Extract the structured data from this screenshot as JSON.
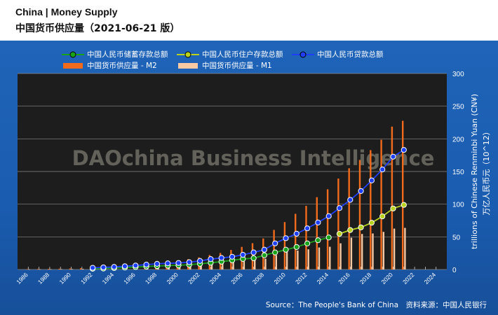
{
  "header": {
    "title_line1": "China  |  Money Supply",
    "title_line2": "中国货币供应量（2021-06-21 版）"
  },
  "watermark": "DAOchina Business Intelligence",
  "source": "Source：The People's Bank of China　资料来源：中国人民银行",
  "colors": {
    "plot_bg": "#1d1d1d",
    "panel": "#1a5cb0",
    "grid": "#8a8a8a",
    "savings": "#19a319",
    "household": "#b9d21e",
    "loans": "#1f3fff",
    "m2": "#f26a1b",
    "m1": "#f8c9a3"
  },
  "chart_data": {
    "type": "bar",
    "ylabel": "trillions of Chinese Renminbi Yuan (CN¥)",
    "ylabel2": "万亿人民币元（10^12）",
    "ylim": [
      0,
      300
    ],
    "yticks": [
      "0",
      "50",
      "100",
      "150",
      "200",
      "250",
      "300"
    ],
    "xlim": [
      1985,
      2025
    ],
    "xticks": [
      "1986",
      "1988",
      "1990",
      "1992",
      "1994",
      "1996",
      "1998",
      "2000",
      "2002",
      "2004",
      "2006",
      "2008",
      "2010",
      "2012",
      "2014",
      "2016",
      "2018",
      "2020",
      "2022",
      "2024"
    ],
    "legend": [
      {
        "name": "中国人民币储蓄存款总额",
        "kind": "line",
        "series": "savings"
      },
      {
        "name": "中国人民币住户存款总额",
        "kind": "line",
        "series": "household"
      },
      {
        "name": "中国人民币贷款总额",
        "kind": "line",
        "series": "loans"
      },
      {
        "name": "中国货币供应量 - M2",
        "kind": "bar",
        "series": "m2"
      },
      {
        "name": "中国货币供应量 - M1",
        "kind": "bar",
        "series": "m1"
      }
    ],
    "bar_years": [
      1986,
      1987,
      1988,
      1989,
      1990,
      1991,
      1992,
      1993,
      1994,
      1995,
      1996,
      1997,
      1998,
      1999,
      2000,
      2001,
      2002,
      2003,
      2004,
      2005,
      2006,
      2007,
      2008,
      2009,
      2010,
      2011,
      2012,
      2013,
      2014,
      2015,
      2016,
      2017,
      2018,
      2019,
      2020,
      2021
    ],
    "m2": [
      0.6,
      0.8,
      1.0,
      1.2,
      1.5,
      1.9,
      2.5,
      3.5,
      4.7,
      6.1,
      7.6,
      9.1,
      10.4,
      11.9,
      13.5,
      15.8,
      18.5,
      22.1,
      25.3,
      29.9,
      34.6,
      40.3,
      47.5,
      60.6,
      72.6,
      85.2,
      97.4,
      110.7,
      122.8,
      139.2,
      155.0,
      167.7,
      182.7,
      198.6,
      218.7,
      227.6
    ],
    "m1": [
      0.3,
      0.4,
      0.5,
      0.6,
      0.7,
      0.9,
      1.2,
      1.6,
      2.1,
      2.4,
      2.9,
      3.5,
      3.9,
      4.6,
      5.3,
      6.0,
      7.1,
      8.4,
      9.6,
      10.7,
      12.6,
      15.3,
      16.6,
      22.0,
      26.7,
      29.0,
      30.9,
      33.7,
      34.8,
      40.1,
      48.7,
      54.4,
      55.2,
      57.6,
      62.6,
      63.7
    ],
    "line_years": [
      1992,
      1993,
      1994,
      1995,
      1996,
      1997,
      1998,
      1999,
      2000,
      2001,
      2002,
      2003,
      2004,
      2005,
      2006,
      2007,
      2008,
      2009,
      2010,
      2011,
      2012,
      2013,
      2014,
      2015,
      2016,
      2017,
      2018,
      2019,
      2020,
      2021
    ],
    "savings": [
      1.2,
      1.5,
      2.2,
      3.0,
      3.8,
      4.6,
      5.3,
      6.0,
      6.4,
      7.4,
      8.7,
      10.4,
      12.0,
      14.1,
      16.2,
      17.3,
      21.8,
      26.1,
      30.3,
      34.4,
      39.9,
      44.8,
      49.0,
      null,
      null,
      null,
      null,
      null,
      null,
      null
    ],
    "household": [
      null,
      null,
      null,
      null,
      null,
      null,
      null,
      null,
      null,
      null,
      null,
      null,
      null,
      null,
      null,
      null,
      null,
      null,
      null,
      null,
      null,
      null,
      null,
      54.6,
      60.4,
      64.5,
      71.6,
      81.3,
      93.4,
      98.9
    ],
    "loans": [
      2.6,
      3.3,
      4.0,
      5.0,
      6.1,
      7.5,
      8.7,
      9.4,
      10.0,
      11.2,
      13.1,
      15.9,
      17.7,
      19.5,
      22.5,
      26.1,
      30.3,
      40.0,
      47.9,
      54.8,
      63.0,
      71.9,
      81.7,
      94.0,
      106.6,
      120.1,
      136.3,
      153.1,
      172.7,
      183.0
    ]
  }
}
